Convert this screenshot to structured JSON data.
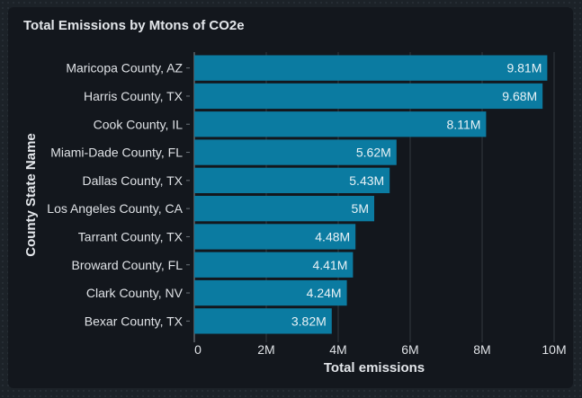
{
  "card": {
    "title": "Total Emissions by Mtons of CO2e"
  },
  "chart_data": {
    "type": "bar",
    "orientation": "horizontal",
    "title": "Total Emissions by Mtons of CO2e",
    "xlabel": "Total emissions",
    "ylabel": "County State Name",
    "xlim": [
      0,
      10000000
    ],
    "xticks": [
      0,
      2000000,
      4000000,
      6000000,
      8000000,
      10000000
    ],
    "xtick_labels": [
      "0",
      "2M",
      "4M",
      "6M",
      "8M",
      "10M"
    ],
    "grid": "vertical",
    "categories": [
      "Maricopa County, AZ",
      "Harris County, TX",
      "Cook County, IL",
      "Miami-Dade County, FL",
      "Dallas County, TX",
      "Los Angeles County, CA",
      "Tarrant County, TX",
      "Broward County, FL",
      "Clark County, NV",
      "Bexar County, TX"
    ],
    "values": [
      9810000,
      9680000,
      8110000,
      5620000,
      5430000,
      5000000,
      4480000,
      4410000,
      4240000,
      3820000
    ],
    "data_labels": [
      "9.81M",
      "9.68M",
      "8.11M",
      "5.62M",
      "5.43M",
      "5M",
      "4.48M",
      "4.41M",
      "4.24M",
      "3.82M"
    ],
    "colors": {
      "bar": "#0b7ba1",
      "gridline": "#2c3238",
      "axis": "#6b7278"
    }
  }
}
